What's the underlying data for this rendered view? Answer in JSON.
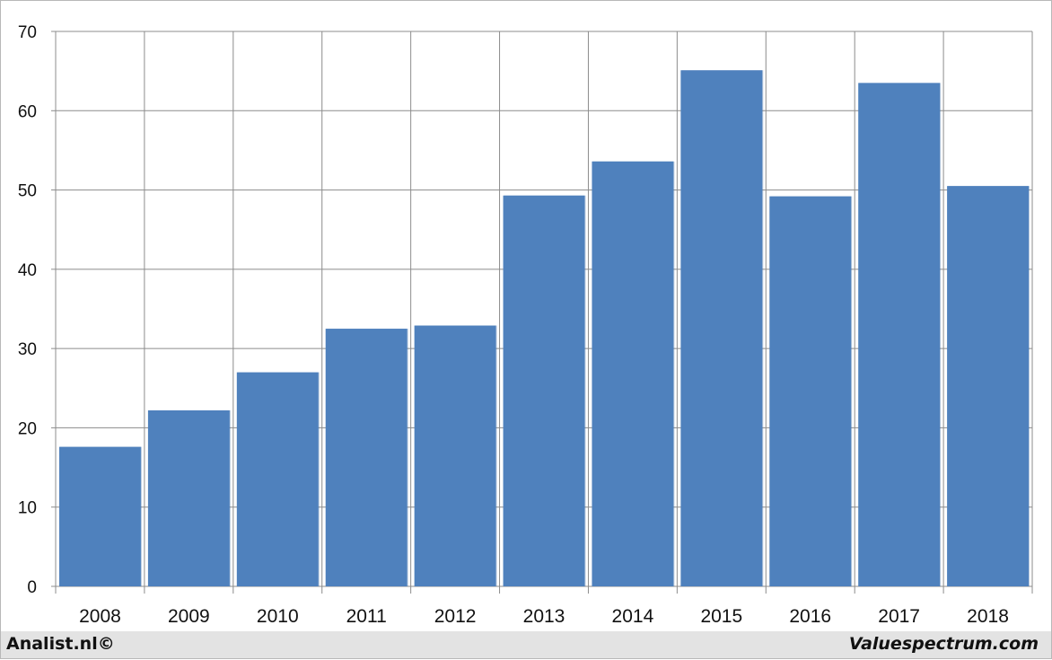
{
  "chart_data": {
    "type": "bar",
    "title": "",
    "xlabel": "",
    "ylabel": "",
    "categories": [
      "2008",
      "2009",
      "2010",
      "2011",
      "2012",
      "2013",
      "2014",
      "2015",
      "2016",
      "2017",
      "2018"
    ],
    "values": [
      17.6,
      22.2,
      27.0,
      32.5,
      32.9,
      49.3,
      53.6,
      65.1,
      49.2,
      63.5,
      50.5
    ],
    "ylim": [
      0,
      70
    ],
    "yticks": [
      0,
      10,
      20,
      30,
      40,
      50,
      60,
      70
    ],
    "grid": true,
    "bar_color": "#4f81bd"
  },
  "footer": {
    "left_credit": "Analist.nl©",
    "right_credit": "Valuespectrum.com"
  }
}
